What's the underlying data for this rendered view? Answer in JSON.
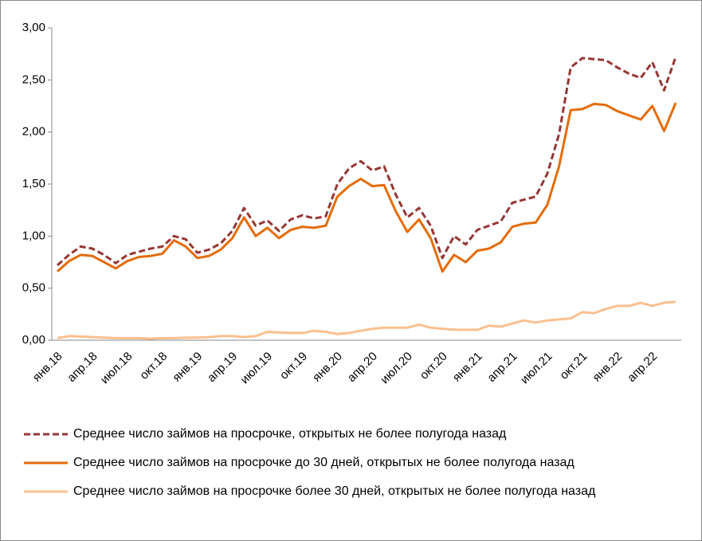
{
  "chart_data": {
    "type": "line",
    "categories": [
      "янв.18",
      null,
      null,
      "апр.18",
      null,
      null,
      "июл.18",
      null,
      null,
      "окт.18",
      null,
      null,
      "янв.19",
      null,
      null,
      "апр.19",
      null,
      null,
      "июл.19",
      null,
      null,
      "окт.19",
      null,
      null,
      "янв.20",
      null,
      null,
      "апр.20",
      null,
      null,
      "июл.20",
      null,
      null,
      "окт.20",
      null,
      null,
      "янв.21",
      null,
      null,
      "апр.21",
      null,
      null,
      "июл.21",
      null,
      null,
      "окт.21",
      null,
      null,
      "янв.22",
      null,
      null,
      "апр.22",
      null,
      null
    ],
    "series": [
      {
        "name": "Среднее число займов на просрочке, открытых не более полугода назад",
        "color": "#953735",
        "dashed": true,
        "values": [
          0.72,
          0.82,
          0.9,
          0.88,
          0.82,
          0.74,
          0.82,
          0.85,
          0.88,
          0.9,
          1.0,
          0.97,
          0.84,
          0.87,
          0.93,
          1.05,
          1.27,
          1.1,
          1.15,
          1.05,
          1.16,
          1.2,
          1.17,
          1.19,
          1.5,
          1.65,
          1.72,
          1.63,
          1.67,
          1.4,
          1.18,
          1.27,
          1.1,
          0.79,
          1.0,
          0.92,
          1.06,
          1.1,
          1.14,
          1.32,
          1.35,
          1.38,
          1.6,
          1.98,
          2.62,
          2.71,
          2.7,
          2.69,
          2.62,
          2.56,
          2.52,
          2.67,
          2.4,
          2.72
        ]
      },
      {
        "name": "Среднее число займов на просрочке до 30 дней, открытых не более полугода назад",
        "color": "#e46c0a",
        "dashed": false,
        "values": [
          0.66,
          0.76,
          0.82,
          0.81,
          0.75,
          0.69,
          0.76,
          0.8,
          0.81,
          0.83,
          0.96,
          0.9,
          0.79,
          0.81,
          0.87,
          0.98,
          1.18,
          1.0,
          1.08,
          0.98,
          1.06,
          1.09,
          1.08,
          1.1,
          1.38,
          1.48,
          1.55,
          1.48,
          1.49,
          1.24,
          1.04,
          1.16,
          0.98,
          0.66,
          0.82,
          0.75,
          0.86,
          0.88,
          0.94,
          1.09,
          1.12,
          1.13,
          1.3,
          1.67,
          2.21,
          2.22,
          2.27,
          2.26,
          2.2,
          2.16,
          2.12,
          2.25,
          2.01,
          2.28
        ]
      },
      {
        "name": "Среднее число займов на просрочке более 30 дней, открытых не более полугода назад",
        "color": "#fac090",
        "dashed": false,
        "values": [
          0.02,
          0.04,
          0.035,
          0.03,
          0.025,
          0.02,
          0.02,
          0.02,
          0.015,
          0.02,
          0.02,
          0.025,
          0.025,
          0.03,
          0.04,
          0.04,
          0.03,
          0.04,
          0.08,
          0.075,
          0.07,
          0.07,
          0.09,
          0.08,
          0.06,
          0.07,
          0.09,
          0.11,
          0.12,
          0.12,
          0.12,
          0.15,
          0.12,
          0.11,
          0.1,
          0.1,
          0.1,
          0.14,
          0.13,
          0.16,
          0.19,
          0.17,
          0.19,
          0.2,
          0.21,
          0.27,
          0.26,
          0.3,
          0.33,
          0.33,
          0.36,
          0.33,
          0.36,
          0.37
        ]
      }
    ],
    "ylim": [
      0,
      3
    ],
    "yticks": [
      {
        "value": 0,
        "label": "0,00"
      },
      {
        "value": 0.5,
        "label": "0,50"
      },
      {
        "value": 1,
        "label": "1,00"
      },
      {
        "value": 1.5,
        "label": "1,50"
      },
      {
        "value": 2,
        "label": "2,00"
      },
      {
        "value": 2.5,
        "label": "2,50"
      },
      {
        "value": 3,
        "label": "3,00"
      }
    ],
    "grid": false
  }
}
